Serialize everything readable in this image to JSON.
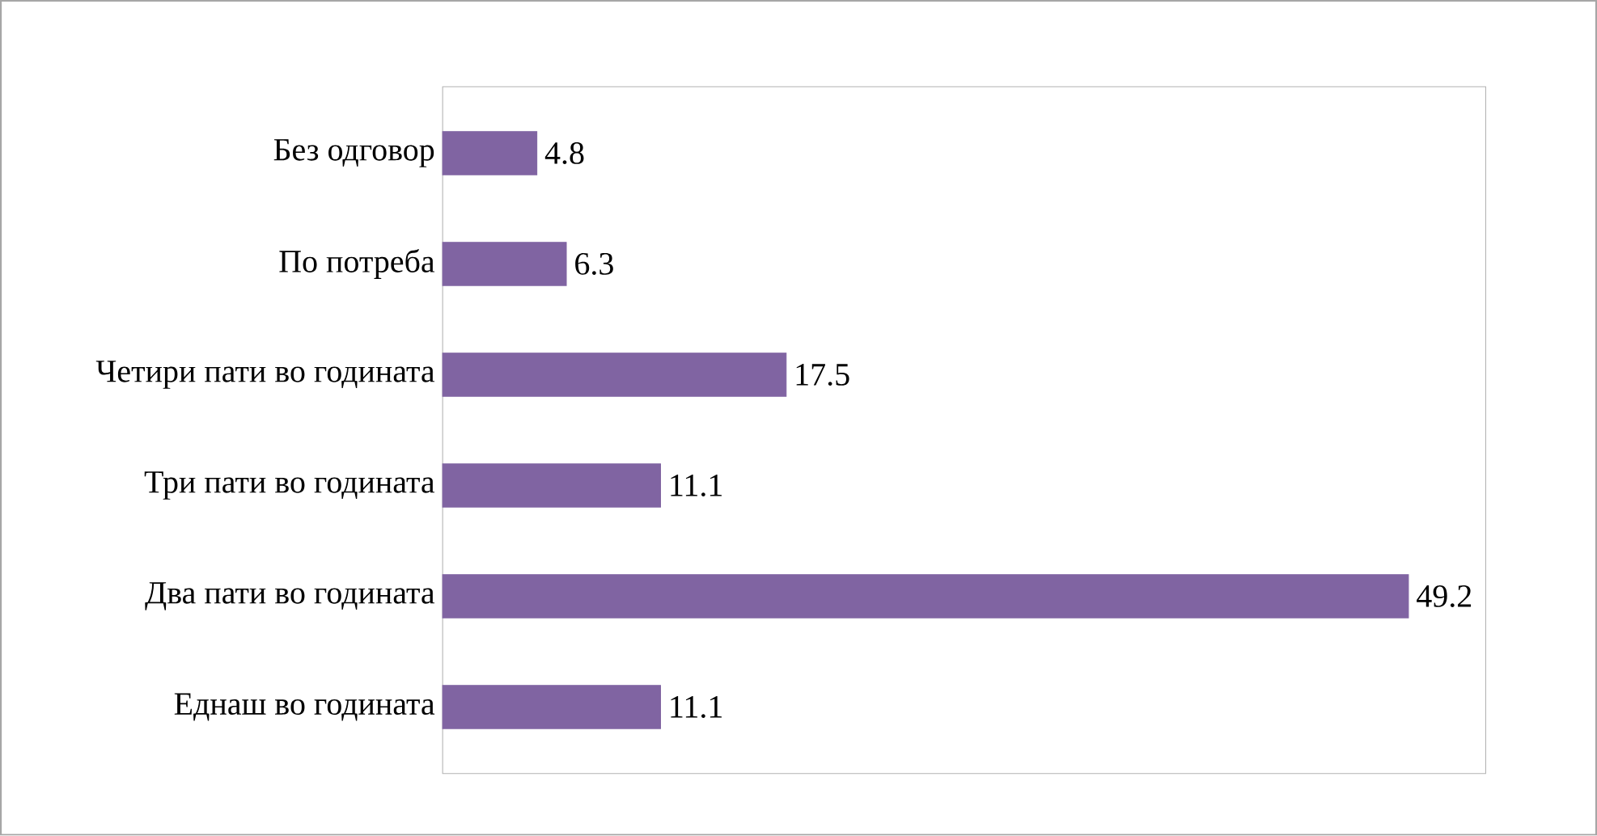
{
  "chart_data": {
    "type": "bar",
    "orientation": "horizontal",
    "categories": [
      "Без одговор",
      "По потреба",
      "Четири пати во годината",
      "Три пати во годината",
      "Два пати во годината",
      "Еднаш во годината"
    ],
    "values": [
      4.8,
      6.3,
      17.5,
      11.1,
      49.2,
      11.1
    ],
    "color": "#8064a2",
    "data_labels": true
  }
}
